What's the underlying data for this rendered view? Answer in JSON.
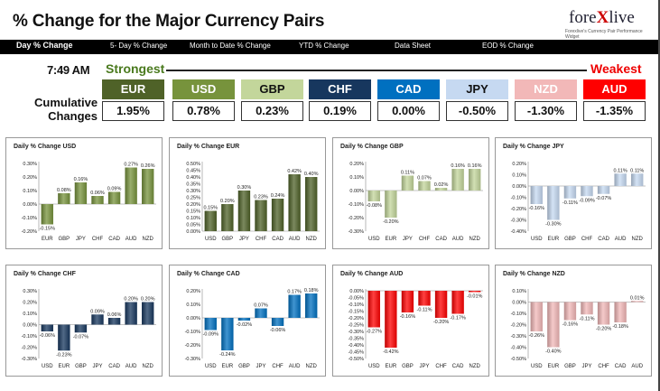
{
  "header": {
    "title": "% Change for the Major Currency Pairs",
    "logo_main_1": "fore",
    "logo_x": "X",
    "logo_main_2": "live",
    "logo_sub": "Forexlive's Currency Pair Performance Widget"
  },
  "nav": {
    "items": [
      "Day % Change",
      "5- Day % Change",
      "Month to Date % Change",
      "YTD % Change",
      "Data Sheet",
      "EOD % Change"
    ]
  },
  "summary": {
    "time": "7:49 AM",
    "strongest_label": "Strongest",
    "weakest_label": "Weakest",
    "cumulative_label_1": "Cumulative",
    "cumulative_label_2": "Changes",
    "currencies": [
      {
        "name": "EUR",
        "value": "1.95%",
        "bg": "#4f6228",
        "fg": "#ffffff"
      },
      {
        "name": "USD",
        "value": "0.78%",
        "bg": "#77933c",
        "fg": "#ffffff"
      },
      {
        "name": "GBP",
        "value": "0.23%",
        "bg": "#c3d69b",
        "fg": "#111111"
      },
      {
        "name": "CHF",
        "value": "0.19%",
        "bg": "#17375e",
        "fg": "#ffffff"
      },
      {
        "name": "CAD",
        "value": "0.00%",
        "bg": "#0070c0",
        "fg": "#ffffff"
      },
      {
        "name": "JPY",
        "value": "-0.50%",
        "bg": "#c6d9f1",
        "fg": "#111111"
      },
      {
        "name": "NZD",
        "value": "-1.30%",
        "bg": "#f2b8b8",
        "fg": "#ffffff"
      },
      {
        "name": "AUD",
        "value": "-1.35%",
        "bg": "#ff0000",
        "fg": "#ffffff"
      }
    ]
  },
  "chart_data": [
    {
      "type": "bar",
      "title": "Daily % Change USD",
      "categories": [
        "EUR",
        "GBP",
        "JPY",
        "CHF",
        "CAD",
        "AUD",
        "NZD"
      ],
      "values": [
        -0.15,
        0.08,
        0.16,
        0.06,
        0.09,
        0.27,
        0.26
      ],
      "labels": [
        "-0.15%",
        "0.08%",
        "0.16%",
        "0.06%",
        "0.09%",
        "0.27%",
        "0.26%"
      ],
      "ylim": [
        -0.2,
        0.3
      ],
      "ticks": [
        "-0.20%",
        "-0.10%",
        "0.00%",
        "0.10%",
        "0.20%",
        "0.30%"
      ],
      "tick_values": [
        -0.2,
        -0.1,
        0,
        0.1,
        0.2,
        0.3
      ],
      "color": "#77933c"
    },
    {
      "type": "bar",
      "title": "Daily % Change EUR",
      "categories": [
        "USD",
        "GBP",
        "JPY",
        "CHF",
        "CAD",
        "AUD",
        "NZD"
      ],
      "values": [
        0.15,
        0.2,
        0.3,
        0.23,
        0.24,
        0.42,
        0.4
      ],
      "labels": [
        "0.15%",
        "0.20%",
        "0.30%",
        "0.23%",
        "0.24%",
        "0.42%",
        "0.40%"
      ],
      "ylim": [
        0.0,
        0.5
      ],
      "ticks": [
        "0.00%",
        "0.05%",
        "0.10%",
        "0.15%",
        "0.20%",
        "0.25%",
        "0.30%",
        "0.35%",
        "0.40%",
        "0.45%",
        "0.50%"
      ],
      "tick_values": [
        0,
        0.05,
        0.1,
        0.15,
        0.2,
        0.25,
        0.3,
        0.35,
        0.4,
        0.45,
        0.5
      ],
      "color": "#4f6228"
    },
    {
      "type": "bar",
      "title": "Daily % Change GBP",
      "categories": [
        "USD",
        "EUR",
        "JPY",
        "CHF",
        "CAD",
        "AUD",
        "NZD"
      ],
      "values": [
        -0.08,
        -0.2,
        0.11,
        0.07,
        0.02,
        0.16,
        0.16
      ],
      "labels": [
        "-0.08%",
        "-0.20%",
        "0.11%",
        "0.07%",
        "0.02%",
        "0.16%",
        "0.16%"
      ],
      "ylim": [
        -0.3,
        0.2
      ],
      "ticks": [
        "-0.30%",
        "-0.20%",
        "-0.10%",
        "0.00%",
        "0.10%",
        "0.20%"
      ],
      "tick_values": [
        -0.3,
        -0.2,
        -0.1,
        0,
        0.1,
        0.2
      ],
      "color": "#c3d69b"
    },
    {
      "type": "bar",
      "title": "Daily % Change JPY",
      "categories": [
        "USD",
        "EUR",
        "GBP",
        "CHF",
        "CAD",
        "AUD",
        "NZD"
      ],
      "values": [
        -0.16,
        -0.3,
        -0.11,
        -0.09,
        -0.07,
        0.11,
        0.11
      ],
      "labels": [
        "-0.16%",
        "-0.30%",
        "-0.11%",
        "-0.09%",
        "-0.07%",
        "0.11%",
        "0.11%"
      ],
      "ylim": [
        -0.4,
        0.2
      ],
      "ticks": [
        "-0.40%",
        "-0.30%",
        "-0.20%",
        "-0.10%",
        "0.00%",
        "0.10%",
        "0.20%"
      ],
      "tick_values": [
        -0.4,
        -0.3,
        -0.2,
        -0.1,
        0,
        0.1,
        0.2
      ],
      "color": "#c6d9f1"
    },
    {
      "type": "bar",
      "title": "Daily % Change CHF",
      "categories": [
        "USD",
        "EUR",
        "GBP",
        "JPY",
        "CAD",
        "AUD",
        "NZD"
      ],
      "values": [
        -0.06,
        -0.23,
        -0.07,
        0.09,
        0.06,
        0.2,
        0.2
      ],
      "labels": [
        "-0.06%",
        "-0.23%",
        "-0.07%",
        "0.09%",
        "0.06%",
        "0.20%",
        "0.20%"
      ],
      "ylim": [
        -0.3,
        0.3
      ],
      "ticks": [
        "-0.30%",
        "-0.20%",
        "-0.10%",
        "0.00%",
        "0.10%",
        "0.20%",
        "0.30%"
      ],
      "tick_values": [
        -0.3,
        -0.2,
        -0.1,
        0,
        0.1,
        0.2,
        0.3
      ],
      "color": "#17375e"
    },
    {
      "type": "bar",
      "title": "Daily % Change CAD",
      "categories": [
        "USD",
        "EUR",
        "GBP",
        "JPY",
        "CHF",
        "AUD",
        "NZD"
      ],
      "values": [
        -0.09,
        -0.24,
        -0.02,
        0.07,
        -0.06,
        0.17,
        0.18
      ],
      "labels": [
        "-0.09%",
        "-0.24%",
        "-0.02%",
        "0.07%",
        "-0.06%",
        "0.17%",
        "0.18%"
      ],
      "ylim": [
        -0.3,
        0.2
      ],
      "ticks": [
        "-0.30%",
        "-0.20%",
        "-0.10%",
        "0.00%",
        "0.10%",
        "0.20%"
      ],
      "tick_values": [
        -0.3,
        -0.2,
        -0.1,
        0,
        0.1,
        0.2
      ],
      "color": "#0070c0"
    },
    {
      "type": "bar",
      "title": "Daily % Change AUD",
      "categories": [
        "USD",
        "EUR",
        "GBP",
        "JPY",
        "CHF",
        "CAD",
        "NZD"
      ],
      "values": [
        -0.27,
        -0.42,
        -0.16,
        -0.11,
        -0.2,
        -0.17,
        -0.01
      ],
      "labels": [
        "-0.27%",
        "-0.42%",
        "-0.16%",
        "-0.11%",
        "-0.20%",
        "-0.17%",
        "-0.01%"
      ],
      "ylim": [
        -0.5,
        0.0
      ],
      "ticks": [
        "-0.50%",
        "-0.45%",
        "-0.40%",
        "-0.35%",
        "-0.30%",
        "-0.25%",
        "-0.20%",
        "-0.15%",
        "-0.10%",
        "-0.05%",
        "0.00%"
      ],
      "tick_values": [
        -0.5,
        -0.45,
        -0.4,
        -0.35,
        -0.3,
        -0.25,
        -0.2,
        -0.15,
        -0.1,
        -0.05,
        0
      ],
      "color": "#ff0000"
    },
    {
      "type": "bar",
      "title": "Daily % Change NZD",
      "categories": [
        "USD",
        "EUR",
        "GBP",
        "JPY",
        "CHF",
        "CAD",
        "AUD"
      ],
      "values": [
        -0.26,
        -0.4,
        -0.16,
        -0.11,
        -0.2,
        -0.18,
        0.01
      ],
      "labels": [
        "-0.26%",
        "-0.40%",
        "-0.16%",
        "-0.11%",
        "-0.20%",
        "-0.18%",
        "0.01%"
      ],
      "ylim": [
        -0.5,
        0.1
      ],
      "ticks": [
        "-0.50%",
        "-0.40%",
        "-0.30%",
        "-0.20%",
        "-0.10%",
        "0.00%",
        "0.10%"
      ],
      "tick_values": [
        -0.5,
        -0.4,
        -0.3,
        -0.2,
        -0.1,
        0,
        0.1
      ],
      "color": "#f2b8b8"
    }
  ]
}
